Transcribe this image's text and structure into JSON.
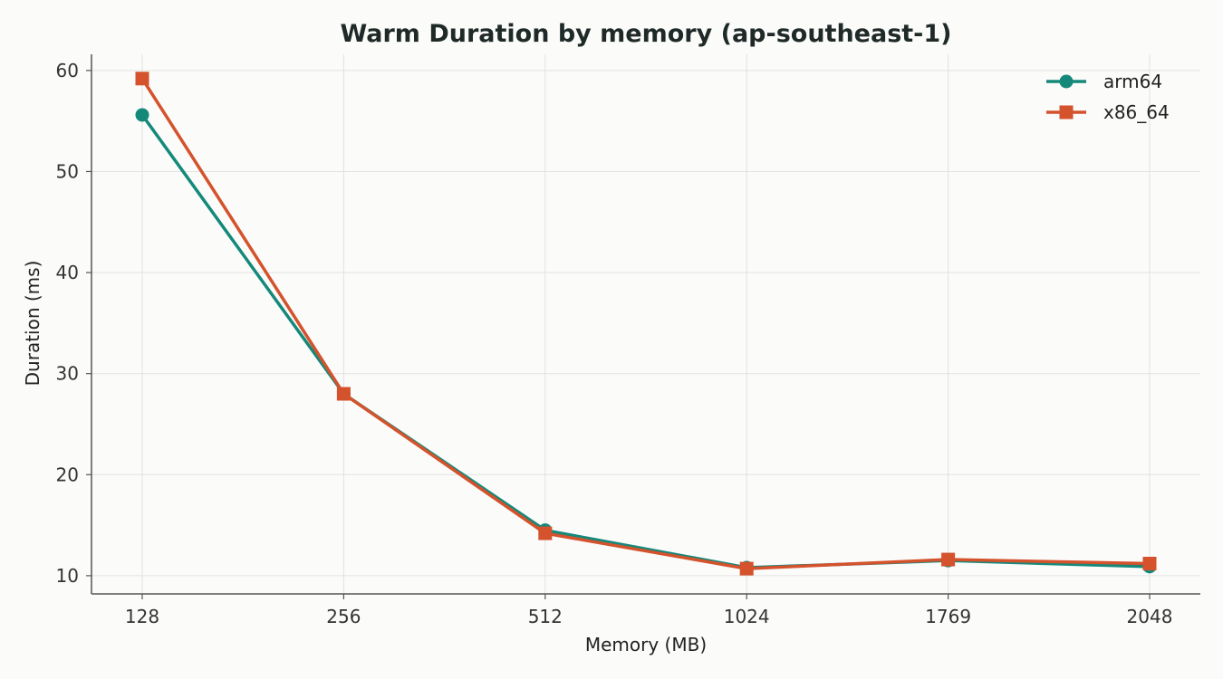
{
  "chart_data": {
    "type": "line",
    "title": "Warm Duration by memory (ap-southeast-1)",
    "xlabel": "Memory (MB)",
    "ylabel": "Duration (ms)",
    "categories": [
      "128",
      "256",
      "512",
      "1024",
      "1769",
      "2048"
    ],
    "ylim": [
      8.2,
      61.6
    ],
    "yticks": [
      10,
      20,
      30,
      40,
      50,
      60
    ],
    "grid": true,
    "legend_position": "top-right",
    "series": [
      {
        "name": "arm64",
        "values": [
          55.6,
          28.0,
          14.5,
          10.8,
          11.5,
          10.9
        ],
        "color": "#14897a",
        "marker": "circle"
      },
      {
        "name": "x86_64",
        "values": [
          59.2,
          28.0,
          14.2,
          10.7,
          11.6,
          11.2
        ],
        "color": "#d4522c",
        "marker": "square"
      }
    ]
  }
}
